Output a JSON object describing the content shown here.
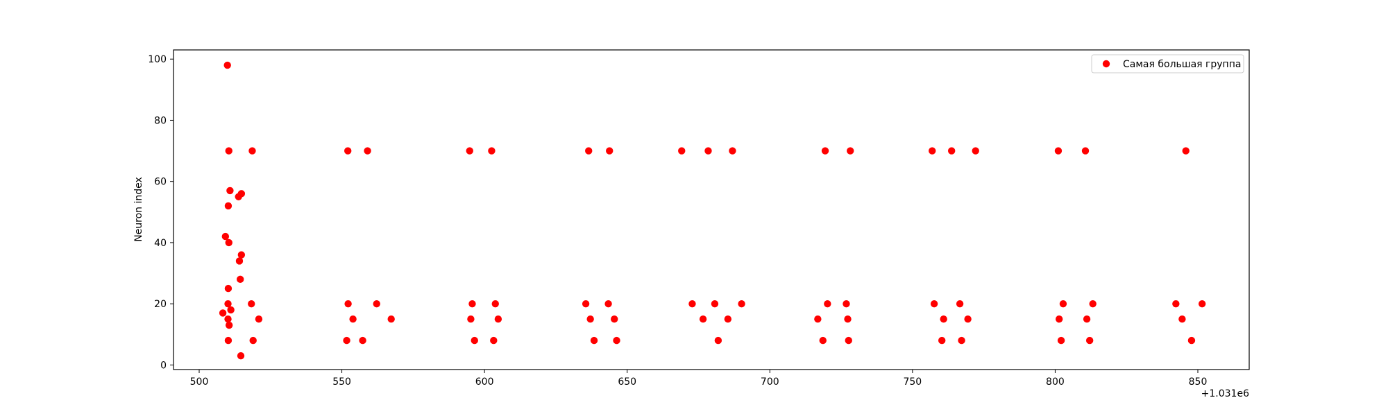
{
  "chart_data": {
    "type": "scatter",
    "title": "",
    "xlabel": "",
    "ylabel": "Neuron index",
    "x_offset_label": "+1.031e6",
    "xlim": [
      491,
      868
    ],
    "ylim": [
      -1.5,
      103
    ],
    "x_ticks": [
      500,
      550,
      600,
      650,
      700,
      750,
      800,
      850
    ],
    "y_ticks": [
      0,
      20,
      40,
      60,
      80,
      100
    ],
    "grid": false,
    "legend_position": "top-right",
    "color": "#ff0000",
    "series": [
      {
        "name": "Самая большая группа",
        "points": [
          [
            509.9,
            98
          ],
          [
            508.3,
            17
          ],
          [
            509.2,
            42
          ],
          [
            510.1,
            20
          ],
          [
            510.1,
            15
          ],
          [
            510.2,
            25
          ],
          [
            510.2,
            52
          ],
          [
            510.2,
            8
          ],
          [
            510.4,
            40
          ],
          [
            510.4,
            70
          ],
          [
            510.5,
            13
          ],
          [
            510.8,
            57
          ],
          [
            511.1,
            18
          ],
          [
            513.8,
            55
          ],
          [
            514.1,
            34
          ],
          [
            514.4,
            28
          ],
          [
            514.6,
            3
          ],
          [
            514.8,
            56
          ],
          [
            514.8,
            36
          ],
          [
            518.3,
            20
          ],
          [
            518.6,
            70
          ],
          [
            518.9,
            8
          ],
          [
            520.9,
            15
          ],
          [
            551.7,
            8
          ],
          [
            552.1,
            70
          ],
          [
            552.2,
            20
          ],
          [
            553.9,
            15
          ],
          [
            557.3,
            8
          ],
          [
            559.0,
            70
          ],
          [
            562.2,
            20
          ],
          [
            567.3,
            15
          ],
          [
            594.8,
            70
          ],
          [
            595.2,
            15
          ],
          [
            595.7,
            20
          ],
          [
            596.5,
            8
          ],
          [
            602.5,
            70
          ],
          [
            603.2,
            8
          ],
          [
            603.8,
            20
          ],
          [
            604.8,
            15
          ],
          [
            635.5,
            20
          ],
          [
            636.5,
            70
          ],
          [
            637.1,
            15
          ],
          [
            638.4,
            8
          ],
          [
            643.4,
            20
          ],
          [
            643.8,
            70
          ],
          [
            645.5,
            15
          ],
          [
            646.3,
            8
          ],
          [
            669.1,
            70
          ],
          [
            672.8,
            20
          ],
          [
            676.6,
            15
          ],
          [
            678.4,
            70
          ],
          [
            680.7,
            20
          ],
          [
            681.9,
            8
          ],
          [
            685.3,
            15
          ],
          [
            686.9,
            70
          ],
          [
            690.1,
            20
          ],
          [
            716.8,
            15
          ],
          [
            718.6,
            8
          ],
          [
            719.4,
            70
          ],
          [
            720.2,
            20
          ],
          [
            726.8,
            20
          ],
          [
            727.3,
            15
          ],
          [
            727.6,
            8
          ],
          [
            728.2,
            70
          ],
          [
            756.9,
            70
          ],
          [
            757.6,
            20
          ],
          [
            760.3,
            8
          ],
          [
            760.9,
            15
          ],
          [
            763.7,
            70
          ],
          [
            766.6,
            20
          ],
          [
            767.2,
            8
          ],
          [
            769.4,
            15
          ],
          [
            772.1,
            70
          ],
          [
            801.1,
            70
          ],
          [
            801.4,
            15
          ],
          [
            802.1,
            8
          ],
          [
            802.8,
            20
          ],
          [
            810.6,
            70
          ],
          [
            811.1,
            15
          ],
          [
            812.1,
            8
          ],
          [
            813.2,
            20
          ],
          [
            842.3,
            20
          ],
          [
            844.5,
            15
          ],
          [
            845.8,
            70
          ],
          [
            847.8,
            8
          ],
          [
            851.5,
            20
          ]
        ]
      }
    ]
  }
}
